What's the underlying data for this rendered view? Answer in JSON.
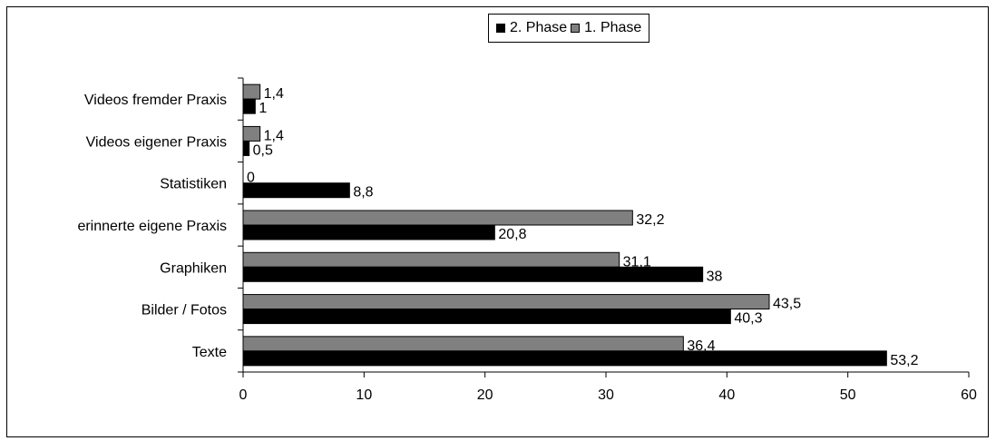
{
  "chart_data": {
    "type": "bar",
    "orientation": "horizontal",
    "categories": [
      "Videos fremder Praxis",
      "Videos eigener Praxis",
      "Statistiken",
      "erinnerte eigene Praxis",
      "Graphiken",
      "Bilder / Fotos",
      "Texte"
    ],
    "series": [
      {
        "name": "1. Phase",
        "color": "#808080",
        "values": [
          1.4,
          1.4,
          0,
          32.2,
          31.1,
          43.5,
          36.4
        ],
        "labels": [
          "1,4",
          "1,4",
          "0",
          "32,2",
          "31,1",
          "43,5",
          "36,4"
        ]
      },
      {
        "name": "2. Phase",
        "color": "#000000",
        "values": [
          1,
          0.5,
          8.8,
          20.8,
          38,
          40.3,
          53.2
        ],
        "labels": [
          "1",
          "0,5",
          "8,8",
          "20,8",
          "38",
          "40,3",
          "53,2"
        ]
      }
    ],
    "xlim": [
      0,
      60
    ],
    "xticks": [
      "0",
      "10",
      "20",
      "30",
      "40",
      "50",
      "60"
    ],
    "legend": {
      "position": "top",
      "entries": [
        "2. Phase",
        "1. Phase"
      ]
    },
    "grid": false
  }
}
